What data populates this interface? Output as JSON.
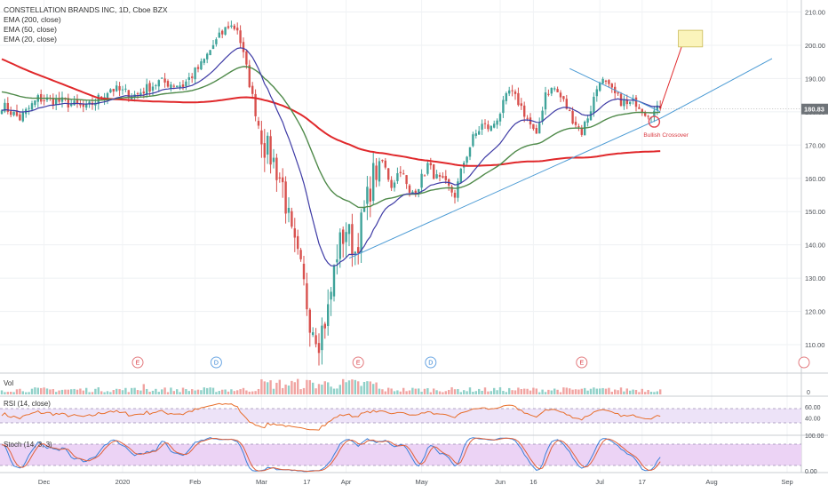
{
  "header": {
    "symbol": "CONSTELLATION BRANDS INC, 1D, Cboe BZX",
    "indicators": [
      "EMA (200, close)",
      "EMA (50, close)",
      "EMA (20, close)"
    ]
  },
  "price_axis": {
    "ticks": [
      "210.00",
      "200.00",
      "190.00",
      "180.00",
      "170.00",
      "160.00",
      "150.00",
      "140.00",
      "130.00",
      "120.00",
      "110.00"
    ],
    "last_price": "180.83"
  },
  "time_axis": {
    "ticks": [
      "Dec",
      "2020",
      "Feb",
      "Mar",
      "17",
      "Apr",
      "May",
      "Jun",
      "16",
      "Jul",
      "17",
      "Aug",
      "Sep"
    ]
  },
  "events": [
    "E",
    "D",
    "E",
    "D",
    "E"
  ],
  "annotation": {
    "text": "Bullish Crossover"
  },
  "volume": {
    "label": "Vol",
    "axis_label": "0"
  },
  "rsi": {
    "label": "RSI (14, close)",
    "axis_labels": [
      "60.00",
      "40.00"
    ]
  },
  "stoch": {
    "label": "Stoch (14, 3, 3)",
    "axis_labels": [
      "100.00",
      "0.00"
    ]
  },
  "colors": {
    "up": "#3fa39a",
    "down": "#d8514e",
    "ema200": "#e0282b",
    "ema50": "#4f8a4a",
    "ema20": "#3e3ba5",
    "trend": "#4a9ad4",
    "rsi_line": "#e86e2a",
    "rsi_band": "#ede3f8",
    "stoch_k": "#3a7fd8",
    "stoch_d": "#e0603a",
    "stoch_band": "#ecd3f5",
    "target_box": "#fbf4bb",
    "last_price_bg": "#6e7378"
  },
  "chart_data": {
    "type": "candlestick",
    "title": "CONSTELLATION BRANDS INC, 1D, Cboe BZX",
    "period": "1D",
    "ylim": [
      102,
      212
    ],
    "last_price": 180.83,
    "x_tick_labels": [
      "Dec",
      "2020",
      "Feb",
      "Mar",
      "17",
      "Apr",
      "May",
      "Jun",
      "16",
      "Jul",
      "17",
      "Aug",
      "Sep"
    ],
    "close_anchors": [
      [
        0,
        182
      ],
      [
        6,
        178
      ],
      [
        12,
        184
      ],
      [
        20,
        183
      ],
      [
        28,
        181
      ],
      [
        36,
        187
      ],
      [
        44,
        185
      ],
      [
        52,
        189
      ],
      [
        60,
        188
      ],
      [
        66,
        194
      ],
      [
        70,
        200
      ],
      [
        75,
        206
      ],
      [
        78,
        205
      ],
      [
        81,
        193
      ],
      [
        84,
        180
      ],
      [
        87,
        170
      ],
      [
        90,
        165
      ],
      [
        93,
        158
      ],
      [
        96,
        142
      ],
      [
        99,
        132
      ],
      [
        102,
        118
      ],
      [
        105,
        112
      ],
      [
        108,
        120
      ],
      [
        111,
        138
      ],
      [
        114,
        145
      ],
      [
        117,
        138
      ],
      [
        120,
        150
      ],
      [
        123,
        161
      ],
      [
        126,
        165
      ],
      [
        129,
        158
      ],
      [
        132,
        163
      ],
      [
        135,
        155
      ],
      [
        138,
        158
      ],
      [
        141,
        164
      ],
      [
        144,
        160
      ],
      [
        147,
        158
      ],
      [
        150,
        155
      ],
      [
        153,
        165
      ],
      [
        156,
        172
      ],
      [
        159,
        176
      ],
      [
        162,
        175
      ],
      [
        165,
        180
      ],
      [
        168,
        186
      ],
      [
        171,
        183
      ],
      [
        174,
        178
      ],
      [
        177,
        172
      ],
      [
        180,
        186
      ],
      [
        183,
        187
      ],
      [
        186,
        183
      ],
      [
        189,
        178
      ],
      [
        192,
        174
      ],
      [
        195,
        181
      ],
      [
        198,
        190
      ],
      [
        201,
        187
      ],
      [
        204,
        184
      ],
      [
        207,
        182
      ],
      [
        210,
        183
      ],
      [
        213,
        180
      ],
      [
        216,
        180
      ],
      [
        218,
        181
      ]
    ],
    "series": [
      {
        "name": "EMA (200, close)"
      },
      {
        "name": "EMA (50, close)"
      },
      {
        "name": "EMA (20, close)"
      }
    ],
    "trendlines": [
      {
        "from": [
          115,
          136
        ],
        "to": [
          218,
          178
        ]
      },
      {
        "from": [
          218,
          178
        ],
        "to": [
          255,
          196
        ]
      },
      {
        "from": [
          188,
          193
        ],
        "to": [
          218,
          180
        ]
      },
      {
        "from": [
          218,
          181
        ],
        "to": [
          226,
          202
        ]
      }
    ],
    "target_box": {
      "x": [
        224,
        232
      ],
      "y": [
        199.5,
        204.5
      ]
    },
    "crossover_point": [
      216,
      177
    ],
    "events": [
      {
        "type": "E",
        "bar": 45
      },
      {
        "type": "D",
        "bar": 71
      },
      {
        "type": "E",
        "bar": 118
      },
      {
        "type": "D",
        "bar": 142
      },
      {
        "type": "E",
        "bar": 192
      }
    ],
    "indicators": {
      "rsi": {
        "levels": [
          70,
          30
        ],
        "axis_labels": [
          "60.00",
          "40.00"
        ]
      },
      "stochastic": {
        "levels": [
          80,
          20
        ],
        "axis_labels": [
          "100.00",
          "0.00"
        ]
      }
    }
  }
}
